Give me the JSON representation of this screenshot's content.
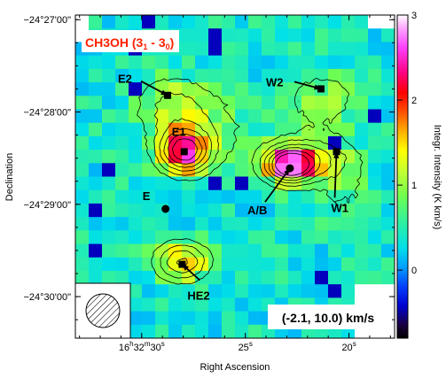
{
  "chart_data": {
    "type": "heatmap",
    "title": "CH3OH (3",
    "title_sub1": "1",
    "title_mid": " - 3",
    "title_sub2": "0",
    "title_end": ")",
    "velocity_label": "(-2.1, 10.0) km/s",
    "xlabel": "Right Ascension",
    "ylabel": "Declination",
    "colorbar_label": "Integr. Intensity (K km/s)",
    "x_ticks": [
      {
        "h": "16",
        "m": "32",
        "s": "30",
        "sec": 30
      },
      {
        "label": "25",
        "sec": 25
      },
      {
        "label": "20",
        "sec": 20
      }
    ],
    "x_tick_sec_unit": "s",
    "y_ticks": [
      {
        "label": "−24°27'00\"",
        "arcmin": 27
      },
      {
        "label": "−24°28'00\"",
        "arcmin": 28
      },
      {
        "label": "−24°29'00\"",
        "arcmin": 29
      },
      {
        "label": "−24°30'00\"",
        "arcmin": 30
      }
    ],
    "x_range_sec": [
      33.2,
      17.8
    ],
    "y_range_arcmin": [
      26.95,
      30.45
    ],
    "colorbar_ticks": [
      -0.7,
      0,
      1,
      2,
      3
    ],
    "colorbar_tick_labels": [
      "",
      "0",
      "1",
      "2",
      "3"
    ],
    "colorbar_range": [
      -0.8,
      3.0
    ],
    "sources": [
      {
        "name": "E2",
        "ra_sec": 28.75,
        "dec_arcmin": 27.82,
        "marker": "square"
      },
      {
        "name": "E1",
        "ra_sec": 27.95,
        "dec_arcmin": 28.43,
        "marker": "square"
      },
      {
        "name": "E",
        "ra_sec": 28.85,
        "dec_arcmin": 29.05,
        "marker": "circle"
      },
      {
        "name": "A/B",
        "ra_sec": 22.85,
        "dec_arcmin": 28.61,
        "marker": "circle"
      },
      {
        "name": "W1",
        "ra_sec": 20.6,
        "dec_arcmin": 28.43,
        "marker": "square"
      },
      {
        "name": "W2",
        "ra_sec": 21.35,
        "dec_arcmin": 27.75,
        "marker": "square"
      },
      {
        "name": "HE2",
        "ra_sec": 28.05,
        "dec_arcmin": 29.65,
        "marker": "square"
      }
    ],
    "peaks": [
      {
        "ra_sec": 27.95,
        "dec_arcmin": 28.43,
        "amp": 2.0,
        "sx": 0.85,
        "sy": 0.16
      },
      {
        "ra_sec": 28.6,
        "dec_arcmin": 27.95,
        "amp": 0.7,
        "sx": 1.3,
        "sy": 0.25
      },
      {
        "ra_sec": 22.9,
        "dec_arcmin": 28.58,
        "amp": 2.1,
        "sx": 0.8,
        "sy": 0.13
      },
      {
        "ra_sec": 21.6,
        "dec_arcmin": 28.5,
        "amp": 0.9,
        "sx": 1.4,
        "sy": 0.18
      },
      {
        "ra_sec": 21.3,
        "dec_arcmin": 27.85,
        "amp": 0.55,
        "sx": 1.3,
        "sy": 0.22
      },
      {
        "ra_sec": 28.05,
        "dec_arcmin": 29.62,
        "amp": 1.3,
        "sx": 0.9,
        "sy": 0.15
      },
      {
        "ra_sec": 26.5,
        "dec_arcmin": 28.2,
        "amp": 0.4,
        "sx": 1.5,
        "sy": 0.3
      },
      {
        "ra_sec": 20.2,
        "dec_arcmin": 28.9,
        "amp": 0.35,
        "sx": 1.0,
        "sy": 0.25
      }
    ],
    "blank_regions": [
      {
        "name": "north-east corner",
        "ra_sec": [
          33.2,
          32.4
        ],
        "dec_arcmin": [
          26.95,
          27.3
        ]
      },
      {
        "name": "north-west corner",
        "ra_sec": [
          18.8,
          17.8
        ],
        "dec_arcmin": [
          26.95,
          27.15
        ]
      },
      {
        "name": "south-west corner",
        "ra_sec": [
          20.0,
          17.8
        ],
        "dec_arcmin": [
          29.9,
          30.45
        ]
      }
    ],
    "beam": {
      "shape": "circle",
      "hatched": true,
      "position": "bottom-left"
    },
    "grid": false,
    "colormap": "rainbow (black-blue-cyan-green-yellow-orange-red-magenta-white)"
  }
}
